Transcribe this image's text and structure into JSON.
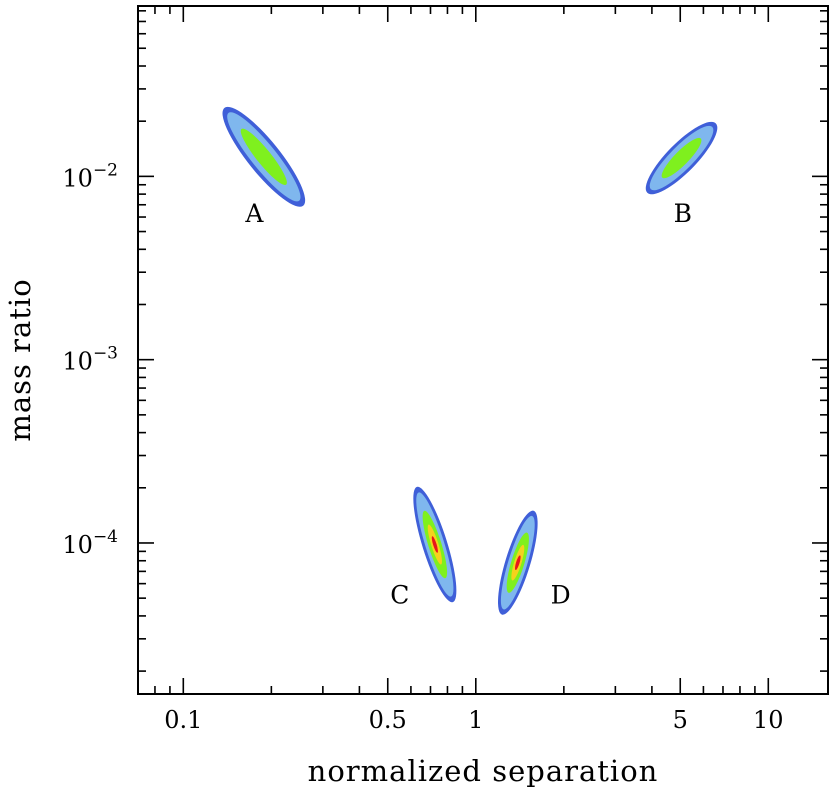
{
  "chart_data": {
    "type": "scatter",
    "xlabel": "normalized separation",
    "ylabel": "mass ratio",
    "x_scale": "log",
    "y_scale": "log",
    "xlim": [
      0.07,
      16
    ],
    "ylim": [
      1.5e-05,
      0.085
    ],
    "grid": false,
    "x_ticks": [
      {
        "value": 0.1,
        "label": "0.1"
      },
      {
        "value": 0.5,
        "label": "0.5"
      },
      {
        "value": 1,
        "label": "1"
      },
      {
        "value": 5,
        "label": "5"
      },
      {
        "value": 10,
        "label": "10"
      }
    ],
    "y_ticks": [
      {
        "value": 0.01,
        "base": "10",
        "exp": "−2"
      },
      {
        "value": 0.001,
        "base": "10",
        "exp": "−3"
      },
      {
        "value": 0.0001,
        "base": "10",
        "exp": "−4"
      }
    ],
    "colors": {
      "outer": "#3f5fd8",
      "mid": "#7fb7ee",
      "inner": "#7ff01e",
      "core": "#f5d21c",
      "peak": "#e8141c"
    },
    "regions": [
      {
        "label": "A",
        "label_x": 0.175,
        "label_y": 0.0063,
        "centers": [
          [
            0.145,
            0.0215
          ],
          [
            0.245,
            0.0076
          ]
        ],
        "widths": {
          "outer": 0.11,
          "mid": 0.085,
          "inner": 0.05
        },
        "has_core": false
      },
      {
        "label": "B",
        "label_x": 5.1,
        "label_y": 0.0063,
        "centers": [
          [
            6.3,
            0.018
          ],
          [
            4.05,
            0.0088
          ]
        ],
        "widths": {
          "outer": 0.1,
          "mid": 0.08,
          "inner": 0.048
        },
        "has_core": false
      },
      {
        "label": "C",
        "label_x": 0.55,
        "label_y": 5.25e-05,
        "centers": [
          [
            0.64,
            0.000185
          ],
          [
            0.82,
            5.2e-05
          ]
        ],
        "widths": {
          "outer": 0.085,
          "mid": 0.065,
          "inner": 0.045,
          "core": 0.025,
          "peak": 0.012
        },
        "has_core": true
      },
      {
        "label": "D",
        "label_x": 1.95,
        "label_y": 5.25e-05,
        "centers": [
          [
            1.25,
            4.45e-05
          ],
          [
            1.55,
            0.000137
          ]
        ],
        "widths": {
          "outer": 0.085,
          "mid": 0.065,
          "inner": 0.045,
          "core": 0.025,
          "peak": 0.012
        },
        "has_core": true
      }
    ]
  }
}
